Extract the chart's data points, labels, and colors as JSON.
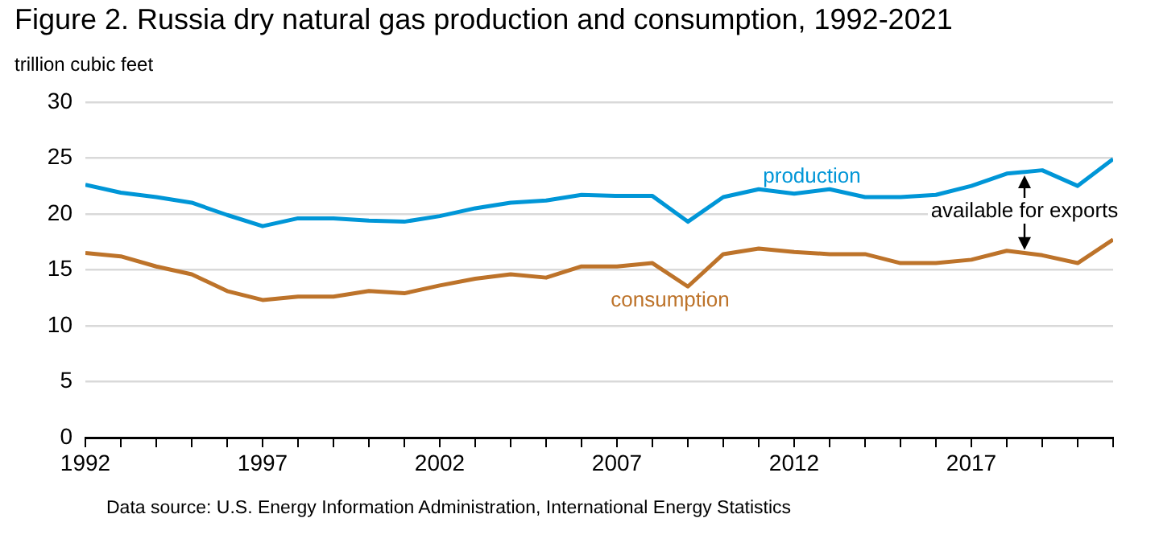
{
  "chart_data": {
    "type": "line",
    "title": "Figure 2. Russia dry natural gas production and consumption, 1992-2021",
    "ylabel": "trillion cubic feet",
    "x": [
      1992,
      1993,
      1994,
      1995,
      1996,
      1997,
      1998,
      1999,
      2000,
      2001,
      2002,
      2003,
      2004,
      2005,
      2006,
      2007,
      2008,
      2009,
      2010,
      2011,
      2012,
      2013,
      2014,
      2015,
      2016,
      2017,
      2018,
      2019,
      2020,
      2021
    ],
    "series": [
      {
        "name": "production",
        "color": "#0096d7",
        "values": [
          22.6,
          21.9,
          21.5,
          21.0,
          19.9,
          18.9,
          19.6,
          19.6,
          19.4,
          19.3,
          19.8,
          20.5,
          21.0,
          21.2,
          21.7,
          21.6,
          21.6,
          19.3,
          21.5,
          22.2,
          21.8,
          22.2,
          21.5,
          21.5,
          21.7,
          22.5,
          23.6,
          23.9,
          22.5,
          24.9
        ]
      },
      {
        "name": "consumption",
        "color": "#bd732a",
        "values": [
          16.5,
          16.2,
          15.3,
          14.6,
          13.1,
          12.3,
          12.6,
          12.6,
          13.1,
          12.9,
          13.6,
          14.2,
          14.6,
          14.3,
          15.3,
          15.3,
          15.6,
          13.5,
          16.4,
          16.9,
          16.6,
          16.4,
          16.4,
          15.6,
          15.6,
          15.9,
          16.7,
          16.3,
          15.6,
          17.7
        ]
      }
    ],
    "xlim": [
      1992,
      2021
    ],
    "xticks": [
      1992,
      {
        "value": 1993,
        "label": null
      },
      {
        "value": 1994,
        "label": null
      },
      {
        "value": 1995,
        "label": null
      },
      {
        "value": 1996,
        "label": null
      },
      1997,
      {
        "value": 1998,
        "label": null
      },
      {
        "value": 1999,
        "label": null
      },
      {
        "value": 2000,
        "label": null
      },
      {
        "value": 2001,
        "label": null
      },
      2002,
      {
        "value": 2003,
        "label": null
      },
      {
        "value": 2004,
        "label": null
      },
      {
        "value": 2005,
        "label": null
      },
      {
        "value": 2006,
        "label": null
      },
      2007,
      {
        "value": 2008,
        "label": null
      },
      {
        "value": 2009,
        "label": null
      },
      {
        "value": 2010,
        "label": null
      },
      {
        "value": 2011,
        "label": null
      },
      2012,
      {
        "value": 2013,
        "label": null
      },
      {
        "value": 2014,
        "label": null
      },
      {
        "value": 2015,
        "label": null
      },
      {
        "value": 2016,
        "label": null
      },
      2017,
      {
        "value": 2018,
        "label": null
      },
      {
        "value": 2019,
        "label": null
      },
      {
        "value": 2020,
        "label": null
      },
      {
        "value": 2021,
        "label": null
      }
    ],
    "ylim": [
      0,
      30
    ],
    "yticks": [
      0,
      5,
      10,
      15,
      20,
      25,
      30
    ],
    "grid": "y",
    "legend": false,
    "marker": "none",
    "line_style": "solid",
    "annotations": [
      "available for exports",
      "Data source: U.S. Energy Information Administration, International Energy Statistics"
    ]
  }
}
